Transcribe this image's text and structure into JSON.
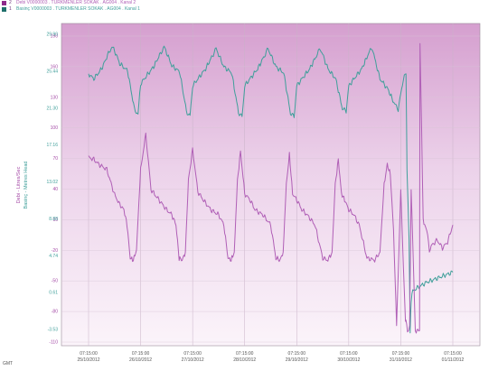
{
  "legend": [
    {
      "index": "2",
      "text": "Debi   V0000003 . TURKMENLER SOKAK . AG004 . Kanal 2",
      "color": "#8e2a8b"
    },
    {
      "index": "1",
      "text": "Basinç   V0000003 . TURKMENLER SOKAK . AG004 . Kanal 1",
      "color": "#1f6f6b"
    }
  ],
  "chart_data": {
    "type": "line",
    "ylabel_left_top": "Debi - Litres/Sec",
    "ylabel_left_bottom": "Basinç - Metres Head",
    "timezone_label": "GMT",
    "x_ticks": [
      {
        "time": "07:15:00",
        "date": "25/10/2012"
      },
      {
        "time": "07:15:00",
        "date": "26/10/2012"
      },
      {
        "time": "07:15:00",
        "date": "27/10/2012"
      },
      {
        "time": "07:15:00",
        "date": "28/10/2012"
      },
      {
        "time": "07:15:00",
        "date": "29/10/2012"
      },
      {
        "time": "07:15:00",
        "date": "30/10/2012"
      },
      {
        "time": "07:15:00",
        "date": "31/10/2012"
      },
      {
        "time": "07:15:00",
        "date": "01/11/2012"
      }
    ],
    "debi_ticks": [
      "190",
      "160",
      "130",
      "100",
      "70",
      "40",
      "10",
      "-20",
      "-50",
      "-80",
      "-110"
    ],
    "basinc_ticks": [
      "29.90",
      "25.44",
      "21.30",
      "17.16",
      "13.02",
      "8.88",
      "4.74",
      "0.61",
      "-3.53"
    ],
    "y_range_units": [
      -115,
      205
    ],
    "series": [
      {
        "name": "Basinç",
        "color": "#3f9f9a",
        "x_days": [
          0.0,
          0.1,
          0.25,
          0.38,
          0.45,
          0.5,
          0.6,
          0.75,
          0.88,
          0.95,
          1.0,
          1.1,
          1.25,
          1.38,
          1.45,
          1.5,
          1.6,
          1.75,
          1.88,
          1.95,
          2.0,
          2.1,
          2.25,
          2.38,
          2.45,
          2.5,
          2.6,
          2.75,
          2.88,
          2.95,
          3.0,
          3.1,
          3.25,
          3.38,
          3.45,
          3.5,
          3.6,
          3.75,
          3.88,
          3.95,
          4.0,
          4.1,
          4.25,
          4.38,
          4.45,
          4.5,
          4.6,
          4.75,
          4.88,
          4.95,
          5.0,
          5.1,
          5.25,
          5.38,
          5.45,
          5.5,
          5.6,
          5.75,
          5.88,
          5.95,
          6.0,
          6.05,
          6.1,
          6.12,
          6.16,
          6.18,
          6.2,
          6.23,
          6.3,
          6.4,
          6.5,
          6.6,
          6.7,
          6.8,
          6.9,
          7.0
        ],
        "values": [
          155,
          150,
          160,
          175,
          182,
          178,
          165,
          158,
          120,
          115,
          145,
          152,
          162,
          175,
          182,
          176,
          163,
          157,
          118,
          113,
          143,
          150,
          160,
          173,
          180,
          174,
          162,
          156,
          117,
          112,
          143,
          150,
          160,
          173,
          180,
          174,
          162,
          156,
          116,
          112,
          143,
          150,
          160,
          173,
          180,
          174,
          160,
          150,
          120,
          118,
          143,
          150,
          160,
          175,
          181,
          170,
          150,
          140,
          125,
          120,
          135,
          150,
          155,
          60,
          -10,
          -100,
          -70,
          -60,
          -58,
          -55,
          -52,
          -50,
          -48,
          -46,
          -44,
          -42
        ]
      },
      {
        "name": "Debi",
        "color": "#b05fb6",
        "x_days": [
          0.0,
          0.1,
          0.2,
          0.35,
          0.5,
          0.6,
          0.68,
          0.74,
          0.8,
          0.86,
          0.92,
          1.0,
          1.1,
          1.2,
          1.35,
          1.5,
          1.6,
          1.68,
          1.74,
          1.8,
          1.86,
          1.92,
          2.0,
          2.1,
          2.2,
          2.35,
          2.5,
          2.6,
          2.68,
          2.74,
          2.8,
          2.86,
          2.92,
          3.0,
          3.1,
          3.2,
          3.35,
          3.5,
          3.6,
          3.68,
          3.74,
          3.8,
          3.86,
          3.92,
          4.0,
          4.1,
          4.2,
          4.35,
          4.5,
          4.6,
          4.68,
          4.74,
          4.8,
          4.86,
          4.92,
          5.0,
          5.1,
          5.2,
          5.35,
          5.5,
          5.6,
          5.68,
          5.74,
          5.8,
          5.86,
          5.92,
          6.0,
          6.05,
          6.09,
          6.1,
          6.13,
          6.17,
          6.2,
          6.28,
          6.36,
          6.37,
          6.4,
          6.43,
          6.46,
          6.5,
          6.55,
          6.6,
          6.7,
          6.8,
          6.9,
          7.0
        ],
        "values": [
          72,
          70,
          65,
          60,
          35,
          25,
          20,
          5,
          -28,
          -30,
          -20,
          60,
          95,
          40,
          30,
          20,
          15,
          5,
          -28,
          -30,
          -22,
          50,
          80,
          38,
          30,
          20,
          15,
          5,
          -28,
          -30,
          -22,
          48,
          78,
          36,
          30,
          20,
          15,
          5,
          -28,
          -30,
          -22,
          45,
          75,
          36,
          30,
          20,
          15,
          5,
          -28,
          -30,
          -22,
          45,
          70,
          36,
          30,
          20,
          15,
          5,
          -28,
          -30,
          -22,
          45,
          65,
          55,
          0,
          -95,
          40,
          -35,
          -90,
          -90,
          -100,
          -95,
          40,
          -100,
          -100,
          185,
          100,
          10,
          5,
          0,
          -20,
          -15,
          -10,
          -18,
          -12,
          5
        ]
      }
    ]
  }
}
